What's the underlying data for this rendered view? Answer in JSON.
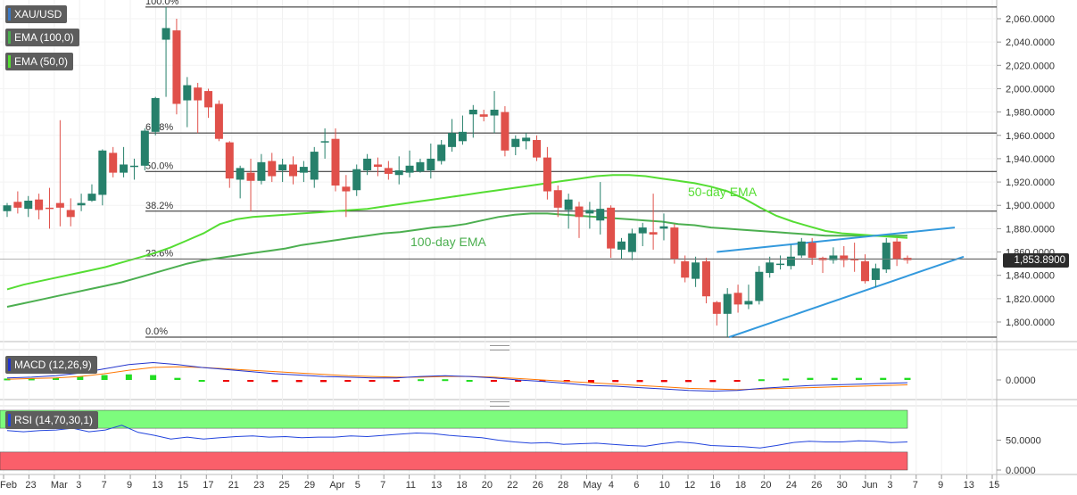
{
  "indicator_labels": {
    "symbol": "XAU/USD",
    "ema100": "EMA (100,0)",
    "ema50": "EMA (50,0)",
    "macd": "MACD (12,26,9)",
    "rsi": "RSI (14,70,30,1)"
  },
  "annotations": {
    "ema50_note": "50-day EMA",
    "ema100_note": "100-day EMA"
  },
  "current_price": "1,853.8900",
  "colors": {
    "bull": "#26806b",
    "bear": "#e0504a",
    "ema50": "#55dd33",
    "ema100": "#4caf50",
    "trendline": "#3399dd",
    "macd_line": "#2233cc",
    "signal_line": "#ff7700",
    "hist_pos": "#22dd22",
    "hist_neg": "#ee0000",
    "rsi_line": "#2244dd",
    "rsi_overbought": "#7dfc7d",
    "rsi_oversold": "#fa5f6a"
  },
  "chart_data": [
    {
      "type": "candlestick",
      "title": "XAU/USD",
      "y_ticks": [
        "2,060.0000",
        "2,040.0000",
        "2,020.0000",
        "2,000.0000",
        "1,980.0000",
        "1,960.0000",
        "1,940.0000",
        "1,920.0000",
        "1,900.0000",
        "1,880.0000",
        "1,860.0000",
        "1,840.0000",
        "1,820.0000",
        "1,800.0000"
      ],
      "ylim": [
        1783,
        2072
      ],
      "x_tick_labels": [
        "Feb",
        "23",
        "Mar",
        "3",
        "7",
        "9",
        "13",
        "15",
        "17",
        "21",
        "23",
        "25",
        "29",
        "Apr",
        "5",
        "7",
        "11",
        "13",
        "18",
        "20",
        "22",
        "26",
        "28",
        "May",
        "4",
        "6",
        "10",
        "12",
        "16",
        "18",
        "20",
        "24",
        "26",
        "30",
        "Jun",
        "3",
        "7",
        "9",
        "13",
        "15"
      ],
      "fibonacci": [
        {
          "label": "100.0%",
          "value": 2070
        },
        {
          "label": "61.8%",
          "value": 1962
        },
        {
          "label": "50.0%",
          "value": 1929
        },
        {
          "label": "38.2%",
          "value": 1895
        },
        {
          "label": "23.6%",
          "value": 1854
        },
        {
          "label": "0.0%",
          "value": 1787
        }
      ],
      "candles": [
        [
          1895,
          1900,
          1890,
          1902
        ],
        [
          1903,
          1898,
          1893,
          1912
        ],
        [
          1897,
          1904,
          1890,
          1908
        ],
        [
          1905,
          1896,
          1888,
          1910
        ],
        [
          1898,
          1897,
          1880,
          1915
        ],
        [
          1902,
          1898,
          1882,
          1973
        ],
        [
          1896,
          1890,
          1882,
          1906
        ],
        [
          1900,
          1902,
          1895,
          1910
        ],
        [
          1904,
          1910,
          1903,
          1918
        ],
        [
          1909,
          1947,
          1900,
          1948
        ],
        [
          1945,
          1928,
          1924,
          1950
        ],
        [
          1928,
          1935,
          1924,
          1950
        ],
        [
          1933,
          1934,
          1922,
          1940
        ],
        [
          1934,
          1964,
          1930,
          1966
        ],
        [
          1963,
          1992,
          1960,
          1993
        ],
        [
          2042,
          2052,
          1993,
          2070
        ],
        [
          2050,
          1987,
          1978,
          2060
        ],
        [
          1990,
          2003,
          1967,
          2010
        ],
        [
          2001,
          1990,
          1962,
          2005
        ],
        [
          1998,
          1984,
          1975,
          2000
        ],
        [
          1987,
          1957,
          1955,
          1990
        ],
        [
          1954,
          1923,
          1915,
          1955
        ],
        [
          1922,
          1932,
          1906,
          1934
        ],
        [
          1928,
          1921,
          1895,
          1940
        ],
        [
          1921,
          1937,
          1918,
          1944
        ],
        [
          1938,
          1925,
          1920,
          1945
        ],
        [
          1930,
          1935,
          1920,
          1940
        ],
        [
          1935,
          1925,
          1918,
          1942
        ],
        [
          1928,
          1933,
          1920,
          1938
        ],
        [
          1922,
          1946,
          1915,
          1950
        ],
        [
          1954,
          1955,
          1940,
          1966
        ],
        [
          1957,
          1917,
          1912,
          1966
        ],
        [
          1916,
          1912,
          1890,
          1926
        ],
        [
          1913,
          1931,
          1908,
          1935
        ],
        [
          1930,
          1940,
          1926,
          1944
        ],
        [
          1935,
          1933,
          1925,
          1941
        ],
        [
          1932,
          1927,
          1922,
          1938
        ],
        [
          1926,
          1930,
          1918,
          1942
        ],
        [
          1928,
          1934,
          1924,
          1947
        ],
        [
          1929,
          1937,
          1928,
          1940
        ],
        [
          1930,
          1940,
          1923,
          1953
        ],
        [
          1938,
          1952,
          1935,
          1956
        ],
        [
          1950,
          1962,
          1946,
          1974
        ],
        [
          1955,
          1963,
          1952,
          1977
        ],
        [
          1978,
          1982,
          1958,
          1986
        ],
        [
          1978,
          1976,
          1972,
          1982
        ],
        [
          1977,
          1982,
          1962,
          1998
        ],
        [
          1980,
          1947,
          1942,
          1985
        ],
        [
          1950,
          1957,
          1943,
          1960
        ],
        [
          1955,
          1958,
          1948,
          1962
        ],
        [
          1956,
          1941,
          1938,
          1960
        ],
        [
          1941,
          1912,
          1905,
          1950
        ],
        [
          1913,
          1898,
          1890,
          1917
        ],
        [
          1896,
          1905,
          1880,
          1910
        ],
        [
          1899,
          1890,
          1872,
          1903
        ],
        [
          1893,
          1896,
          1880,
          1903
        ],
        [
          1887,
          1897,
          1875,
          1920
        ],
        [
          1898,
          1863,
          1855,
          1900
        ],
        [
          1862,
          1869,
          1854,
          1872
        ],
        [
          1860,
          1876,
          1853,
          1880
        ],
        [
          1876,
          1881,
          1865,
          1885
        ],
        [
          1877,
          1875,
          1862,
          1910
        ],
        [
          1880,
          1882,
          1870,
          1893
        ],
        [
          1881,
          1854,
          1850,
          1884
        ],
        [
          1852,
          1838,
          1834,
          1857
        ],
        [
          1837,
          1851,
          1830,
          1856
        ],
        [
          1852,
          1822,
          1816,
          1855
        ],
        [
          1817,
          1807,
          1797,
          1818
        ],
        [
          1807,
          1824,
          1787,
          1829
        ],
        [
          1825,
          1815,
          1808,
          1832
        ],
        [
          1815,
          1818,
          1811,
          1832
        ],
        [
          1818,
          1843,
          1815,
          1848
        ],
        [
          1842,
          1851,
          1838,
          1856
        ],
        [
          1850,
          1850,
          1845,
          1857
        ],
        [
          1848,
          1856,
          1845,
          1866
        ],
        [
          1857,
          1869,
          1855,
          1872
        ],
        [
          1868,
          1855,
          1849,
          1872
        ],
        [
          1855,
          1853,
          1842,
          1856
        ],
        [
          1853,
          1857,
          1850,
          1864
        ],
        [
          1857,
          1853,
          1847,
          1865
        ],
        [
          1854,
          1853,
          1843,
          1868
        ],
        [
          1852,
          1835,
          1833,
          1858
        ],
        [
          1836,
          1846,
          1830,
          1850
        ],
        [
          1845,
          1868,
          1842,
          1872
        ],
        [
          1869,
          1854,
          1848,
          1872
        ],
        [
          1855,
          1853,
          1850,
          1857
        ]
      ],
      "series": [
        {
          "name": "50-day EMA",
          "values": [
            1828,
            1832,
            1835,
            1838,
            1841,
            1844,
            1847,
            1851,
            1855,
            1859,
            1864,
            1870,
            1876,
            1884,
            1888,
            1890,
            1891,
            1892,
            1893,
            1894,
            1895,
            1896,
            1897,
            1899,
            1901,
            1903,
            1905,
            1907,
            1909,
            1911,
            1913,
            1915,
            1917,
            1919,
            1921,
            1923,
            1925,
            1926,
            1926,
            1925,
            1923,
            1921,
            1919,
            1916,
            1912,
            1906,
            1898,
            1891,
            1886,
            1882,
            1878,
            1876,
            1875,
            1874,
            1873,
            1872
          ]
        },
        {
          "name": "100-day EMA",
          "values": [
            1813,
            1816,
            1819,
            1822,
            1825,
            1828,
            1831,
            1834,
            1838,
            1842,
            1846,
            1850,
            1853,
            1855,
            1857,
            1859,
            1861,
            1863,
            1866,
            1868,
            1870,
            1872,
            1874,
            1876,
            1877,
            1879,
            1881,
            1882,
            1884,
            1887,
            1890,
            1892,
            1893,
            1893,
            1892,
            1891,
            1890,
            1889,
            1888,
            1887,
            1886,
            1884,
            1883,
            1881,
            1880,
            1879,
            1878,
            1877,
            1876,
            1875,
            1874,
            1874,
            1874,
            1874,
            1874,
            1874
          ]
        }
      ]
    },
    {
      "type": "line",
      "title": "MACD (12,26,9)",
      "y_ticks": [
        "0.0000"
      ],
      "series": [
        {
          "name": "MACD",
          "values": [
            3,
            4,
            6,
            10,
            16,
            22,
            25,
            22,
            18,
            15,
            12,
            9,
            7,
            5,
            4,
            3,
            3,
            5,
            6,
            5,
            3,
            0,
            -2,
            -5,
            -8,
            -9,
            -11,
            -13,
            -15,
            -16,
            -15,
            -12,
            -10,
            -8,
            -7,
            -6,
            -5,
            -4
          ]
        },
        {
          "name": "Signal",
          "values": [
            1,
            2,
            3,
            5,
            9,
            14,
            18,
            19,
            18,
            16,
            14,
            12,
            10,
            8,
            6,
            5,
            4,
            4,
            5,
            5,
            4,
            2,
            0,
            -2,
            -4,
            -6,
            -8,
            -10,
            -12,
            -13,
            -14,
            -13,
            -12,
            -11,
            -10,
            -9,
            -8,
            -7
          ]
        }
      ],
      "histogram": [
        2,
        2,
        3,
        5,
        7,
        8,
        7,
        3,
        0,
        -1,
        -2,
        -3,
        -3,
        -3,
        -2,
        -2,
        -1,
        1,
        1,
        0,
        -1,
        -2,
        -2,
        -3,
        -4,
        -3,
        -3,
        -3,
        -3,
        -3,
        -1,
        1,
        2,
        3,
        3,
        3,
        3,
        3
      ]
    },
    {
      "type": "line",
      "title": "RSI (14,70,30,1)",
      "y_ticks": [
        "50.0000",
        "0.0000"
      ],
      "ylim": [
        0,
        100
      ],
      "levels": [
        70,
        30
      ],
      "series": [
        {
          "name": "RSI",
          "values": [
            66,
            64,
            66,
            67,
            70,
            64,
            67,
            75,
            63,
            58,
            52,
            55,
            52,
            54,
            56,
            57,
            55,
            56,
            54,
            55,
            55,
            57,
            56,
            58,
            60,
            62,
            61,
            58,
            56,
            54,
            50,
            47,
            45,
            46,
            43,
            44,
            45,
            43,
            41,
            40,
            44,
            47,
            45,
            41,
            40,
            39,
            37,
            41,
            46,
            48,
            47,
            47,
            49,
            48,
            46,
            47
          ]
        }
      ]
    }
  ]
}
